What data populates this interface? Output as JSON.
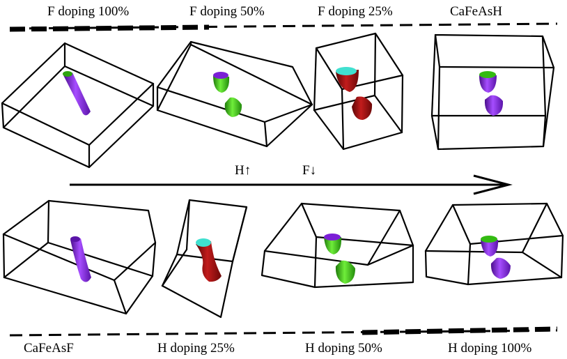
{
  "top_row": {
    "panels": [
      {
        "label": "F doping 100%",
        "shape": "single-tube",
        "colors": {
          "top": "#22aa22",
          "body": "#8a2be2"
        }
      },
      {
        "label": "F doping 50%",
        "shape": "split-pockets",
        "colors": {
          "upper_cap": "#7b1fd6",
          "upper_body": "#33bb11",
          "lower": "#44cc11"
        }
      },
      {
        "label": "F doping 25%",
        "shape": "split-pockets",
        "colors": {
          "upper_cap": "#40e0d0",
          "upper_body": "#aa1111",
          "lower": "#aa1111"
        }
      },
      {
        "label": "CaFeAsH",
        "shape": "split-pockets",
        "colors": {
          "upper_cap": "#33bb11",
          "upper_body": "#7b1fd6",
          "lower": "#8a2be2"
        }
      }
    ]
  },
  "middle": {
    "arrow_labels": [
      "H↑",
      "F↓"
    ],
    "arrow_direction": "right"
  },
  "bottom_row": {
    "panels": [
      {
        "label": "CaFeAsF",
        "shape": "single-tube",
        "colors": {
          "body": "#8a2be2"
        }
      },
      {
        "label": "H doping 25%",
        "shape": "hourglass-tube",
        "colors": {
          "top": "#40e0d0",
          "body": "#aa1111"
        }
      },
      {
        "label": "H doping 50%",
        "shape": "split-pockets",
        "colors": {
          "upper_cap": "#7b1fd6",
          "upper_body": "#33bb11",
          "lower": "#44cc11"
        }
      },
      {
        "label": "H doping 100%",
        "shape": "split-pockets",
        "colors": {
          "upper_cap": "#33bb11",
          "upper_body": "#7b1fd6",
          "lower": "#8a2be2"
        }
      }
    ]
  }
}
